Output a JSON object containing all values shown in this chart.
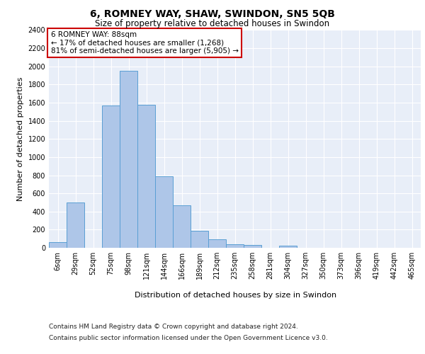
{
  "title1": "6, ROMNEY WAY, SHAW, SWINDON, SN5 5QB",
  "title2": "Size of property relative to detached houses in Swindon",
  "xlabel": "Distribution of detached houses by size in Swindon",
  "ylabel": "Number of detached properties",
  "categories": [
    "6sqm",
    "29sqm",
    "52sqm",
    "75sqm",
    "98sqm",
    "121sqm",
    "144sqm",
    "166sqm",
    "189sqm",
    "212sqm",
    "235sqm",
    "258sqm",
    "281sqm",
    "304sqm",
    "327sqm",
    "350sqm",
    "373sqm",
    "396sqm",
    "419sqm",
    "442sqm",
    "465sqm"
  ],
  "values": [
    60,
    500,
    0,
    1570,
    1950,
    1580,
    790,
    470,
    190,
    95,
    42,
    32,
    0,
    20,
    0,
    0,
    0,
    0,
    0,
    0,
    0
  ],
  "bar_color": "#aec6e8",
  "bar_edge_color": "#5a9fd4",
  "annotation_text": "6 ROMNEY WAY: 88sqm\n← 17% of detached houses are smaller (1,268)\n81% of semi-detached houses are larger (5,905) →",
  "annotation_box_color": "#ffffff",
  "annotation_box_edge": "#cc0000",
  "ylim": [
    0,
    2400
  ],
  "yticks": [
    0,
    200,
    400,
    600,
    800,
    1000,
    1200,
    1400,
    1600,
    1800,
    2000,
    2200,
    2400
  ],
  "footer1": "Contains HM Land Registry data © Crown copyright and database right 2024.",
  "footer2": "Contains public sector information licensed under the Open Government Licence v3.0.",
  "plot_bg_color": "#e8eef8",
  "grid_color": "#ffffff",
  "title1_fontsize": 10,
  "title2_fontsize": 8.5,
  "xlabel_fontsize": 8,
  "ylabel_fontsize": 8,
  "tick_fontsize": 7,
  "annotation_fontsize": 7.5,
  "footer_fontsize": 6.5
}
